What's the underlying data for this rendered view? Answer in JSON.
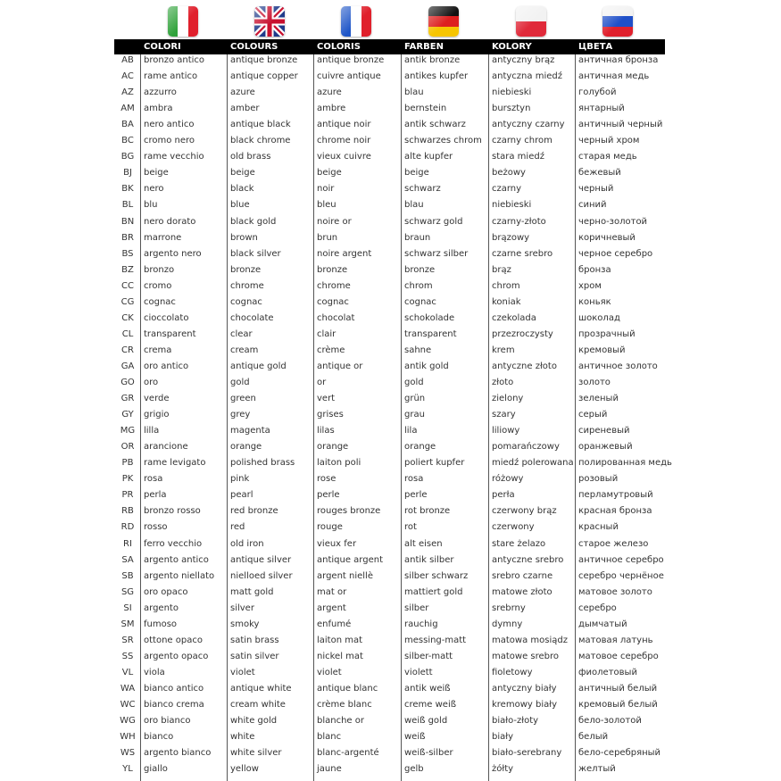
{
  "flags": [
    {
      "name": "italy-flag-icon"
    },
    {
      "name": "uk-flag-icon"
    },
    {
      "name": "france-flag-icon"
    },
    {
      "name": "germany-flag-icon"
    },
    {
      "name": "poland-flag-icon"
    },
    {
      "name": "russia-flag-icon"
    }
  ],
  "headers": [
    "COLORI",
    "COLOURS",
    "COLORIS",
    "FARBEN",
    "KOLORY",
    "ЦВЕТА"
  ],
  "rows": [
    [
      "AB",
      "bronzo antico",
      "antique bronze",
      "antique bronze",
      "antik bronze",
      "antyczny brąz",
      "античная бронза"
    ],
    [
      "AC",
      "rame antico",
      "antique copper",
      "cuivre antique",
      "antikes kupfer",
      "antyczna miedź",
      "античная медь"
    ],
    [
      "AZ",
      "azzurro",
      "azure",
      "azure",
      "blau",
      "niebieski",
      "голубой"
    ],
    [
      "AM",
      "ambra",
      "amber",
      "ambre",
      "bernstein",
      "bursztyn",
      "янтарный"
    ],
    [
      "BA",
      "nero antico",
      "antique black",
      "antique noir",
      "antik schwarz",
      "antyczny czarny",
      "античный черный"
    ],
    [
      "BC",
      "cromo nero",
      "black chrome",
      "chrome noir",
      "schwarzes chrom",
      "czarny chrom",
      "черный хром"
    ],
    [
      "BG",
      "rame vecchio",
      "old brass",
      "vieux cuivre",
      "alte kupfer",
      "stara miedź",
      "старая медь"
    ],
    [
      "BJ",
      "beige",
      "beige",
      "beige",
      "beige",
      "beżowy",
      "бежевый"
    ],
    [
      "BK",
      "nero",
      "black",
      "noir",
      "schwarz",
      "czarny",
      "черный"
    ],
    [
      "BL",
      "blu",
      "blue",
      "bleu",
      "blau",
      "niebieski",
      "синий"
    ],
    [
      "BN",
      "nero dorato",
      "black gold",
      "noire or",
      "schwarz gold",
      "czarny-złoto",
      "черно-золотой"
    ],
    [
      "BR",
      "marrone",
      "brown",
      "brun",
      "braun",
      "brązowy",
      "коричневый"
    ],
    [
      "BS",
      "argento nero",
      "black silver",
      "noire argent",
      "schwarz silber",
      "czarne srebro",
      "черное серебро"
    ],
    [
      "BZ",
      "bronzo",
      "bronze",
      "bronze",
      "bronze",
      "brąz",
      "бронза"
    ],
    [
      "CC",
      "cromo",
      "chrome",
      "chrome",
      "chrom",
      "chrom",
      "хром"
    ],
    [
      "CG",
      "cognac",
      "cognac",
      "cognac",
      "cognac",
      "koniak",
      "коньяк"
    ],
    [
      "CK",
      "cioccolato",
      "chocolate",
      "chocolat",
      "schokolade",
      "czekolada",
      "шоколад"
    ],
    [
      "CL",
      "transparent",
      "clear",
      "clair",
      "transparent",
      "przezroczysty",
      "прозрачный"
    ],
    [
      "CR",
      "crema",
      "cream",
      "crème",
      "sahne",
      "krem",
      "кремовый"
    ],
    [
      "GA",
      "oro antico",
      "antique gold",
      "antique or",
      "antik gold",
      "antyczne złoto",
      "античное золото"
    ],
    [
      "GO",
      "oro",
      "gold",
      "or",
      "gold",
      "złoto",
      "золото"
    ],
    [
      "GR",
      "verde",
      "green",
      "vert",
      "grün",
      "zielony",
      "зеленый"
    ],
    [
      "GY",
      "grigio",
      "grey",
      "grises",
      "grau",
      "szary",
      "серый"
    ],
    [
      "MG",
      "lilla",
      "magenta",
      "lilas",
      "lila",
      "liliowy",
      "сиреневый"
    ],
    [
      "OR",
      "arancione",
      "orange",
      "orange",
      "orange",
      "pomarańczowy",
      "оранжевый"
    ],
    [
      "PB",
      "rame levigato",
      "polished brass",
      "laiton poli",
      "poliert kupfer",
      "miedź polerowana",
      "полированная медь"
    ],
    [
      "PK",
      "rosa",
      "pink",
      "rose",
      "rosa",
      "różowy",
      "розовый"
    ],
    [
      "PR",
      "perla",
      "pearl",
      "perle",
      "perle",
      "perła",
      "перламутровый"
    ],
    [
      "RB",
      "bronzo rosso",
      "red bronze",
      "rouges bronze",
      "rot bronze",
      "czerwony brąz",
      "красная бронза"
    ],
    [
      "RD",
      "rosso",
      "red",
      "rouge",
      "rot",
      "czerwony",
      "красный"
    ],
    [
      "RI",
      "ferro vecchio",
      "old iron",
      "vieux fer",
      "alt eisen",
      "stare żelazo",
      "старое железо"
    ],
    [
      "SA",
      "argento antico",
      "antique silver",
      "antique argent",
      "antik silber",
      "antyczne srebro",
      "античное серебро"
    ],
    [
      "SB",
      "argento niellato",
      "nielloed silver",
      "argent niellè",
      "silber schwarz",
      "srebro czarne",
      "серебро чернёное"
    ],
    [
      "SG",
      "oro opaco",
      "matt gold",
      "mat or",
      "mattiert gold",
      "matowe złoto",
      "матовое золото"
    ],
    [
      "SI",
      "argento",
      "silver",
      "argent",
      "silber",
      "srebrny",
      "серебро"
    ],
    [
      "SM",
      "fumoso",
      "smoky",
      "enfumé",
      "rauchig",
      "dymny",
      "дымчатый"
    ],
    [
      "SR",
      "ottone opaco",
      "satin brass",
      "laiton mat",
      "messing-matt",
      "matowa mosiądz",
      "матовая латунь"
    ],
    [
      "SS",
      "argento opaco",
      "satin silver",
      "nickel mat",
      "silber-matt",
      "matowe srebro",
      "матовое серебро"
    ],
    [
      "VL",
      "viola",
      "violet",
      "violet",
      "violett",
      "fioletowy",
      "фиолетовый"
    ],
    [
      "WA",
      "bianco antico",
      "antique white",
      "antique blanc",
      "antik weiß",
      "antyczny biały",
      "античный белый"
    ],
    [
      "WC",
      "bianco crema",
      "cream white",
      "crème blanc",
      "creme weiß",
      "kremowy biały",
      "кремовый белый"
    ],
    [
      "WG",
      "oro bianco",
      "white gold",
      "blanche or",
      "weiß gold",
      "biało-złoty",
      "бело-золотой"
    ],
    [
      "WH",
      "bianco",
      "white",
      "blanc",
      "weiß",
      "biały",
      "белый"
    ],
    [
      "WS",
      "argento bianco",
      "white silver",
      "blanc-argenté",
      "weiß-silber",
      "biało-serebrany",
      "бело-серебряный"
    ],
    [
      "YL",
      "giallo",
      "yellow",
      "jaune",
      "gelb",
      "żółty",
      "желтый"
    ]
  ]
}
